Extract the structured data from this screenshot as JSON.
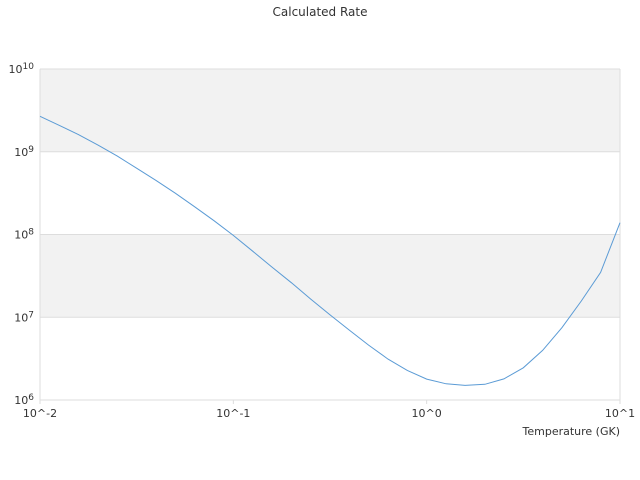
{
  "chart_data": {
    "type": "line",
    "title": "Calculated Rate",
    "xlabel": "Temperature (GK)",
    "ylabel": "",
    "xscale": "log",
    "yscale": "log",
    "xlim": [
      0.01,
      10
    ],
    "ylim": [
      1000000,
      10000000000
    ],
    "x_ticks": [
      {
        "value": 0.01,
        "label": "10^-2"
      },
      {
        "value": 0.1,
        "label": "10^-1"
      },
      {
        "value": 1,
        "label": "10^0"
      },
      {
        "value": 10,
        "label": "10^1"
      }
    ],
    "y_ticks": [
      {
        "value": 1000000,
        "label": "10^6"
      },
      {
        "value": 10000000,
        "label": "10^7"
      },
      {
        "value": 100000000,
        "label": "10^8"
      },
      {
        "value": 1000000000,
        "label": "10^9"
      },
      {
        "value": 10000000000,
        "label": "10^10"
      }
    ],
    "grid": true,
    "band_color": "#f2f2f2",
    "grid_color": "#dddddd",
    "series": [
      {
        "color": "#5b9bd5",
        "x": [
          0.01,
          0.0126,
          0.0158,
          0.02,
          0.0251,
          0.0316,
          0.0398,
          0.0501,
          0.0631,
          0.0794,
          0.1,
          0.126,
          0.158,
          0.2,
          0.251,
          0.316,
          0.398,
          0.501,
          0.631,
          0.794,
          1.0,
          1.26,
          1.58,
          2.0,
          2.51,
          3.16,
          3.98,
          5.01,
          6.31,
          7.94,
          10.0
        ],
        "y": [
          2680000000,
          2080000000,
          1610000000,
          1200000000,
          887000000,
          633000000,
          451000000,
          316000000,
          216000000,
          147000000,
          97400000,
          62800000,
          40600000,
          26100000,
          16600000,
          10700000,
          7000000,
          4610000,
          3120000,
          2280000,
          1790000,
          1570000,
          1500000,
          1550000,
          1800000,
          2450000,
          3980000,
          7500000,
          15700000,
          34800000,
          139000000
        ]
      }
    ]
  }
}
